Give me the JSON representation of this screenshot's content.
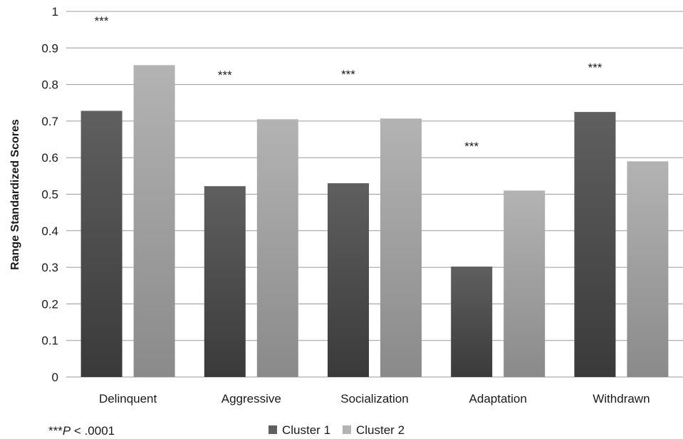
{
  "chart_data": {
    "type": "bar",
    "title": "",
    "xlabel": "",
    "ylabel": "Range Standardized Scores",
    "ylim": [
      0,
      1
    ],
    "yticks": [
      "0",
      "0.1",
      "0.2",
      "0.3",
      "0.4",
      "0.5",
      "0.6",
      "0.7",
      "0.8",
      "0.9",
      "1"
    ],
    "grid": true,
    "legend_position": "bottom",
    "categories": [
      "Delinquent",
      "Aggressive",
      "Socialization",
      "Adaptation",
      "Withdrawn"
    ],
    "series": [
      {
        "name": "Cluster 1",
        "values": [
          0.728,
          0.522,
          0.53,
          0.302,
          0.725
        ],
        "color_top": "#5f5f5f",
        "color_bottom": "#3a3a3a"
      },
      {
        "name": "Cluster 2",
        "values": [
          0.853,
          0.705,
          0.707,
          0.51,
          0.59
        ],
        "color_top": "#b3b3b3",
        "color_bottom": "#8a8a8a"
      }
    ],
    "significance_marks": [
      {
        "category": "Delinquent",
        "label": "***"
      },
      {
        "category": "Aggressive",
        "label": "***"
      },
      {
        "category": "Socialization",
        "label": "***"
      },
      {
        "category": "Adaptation",
        "label": "***"
      },
      {
        "category": "Withdrawn",
        "label": "***"
      }
    ],
    "footnote": {
      "stars": "***",
      "italic": "P",
      "rest": " < .0001"
    }
  }
}
